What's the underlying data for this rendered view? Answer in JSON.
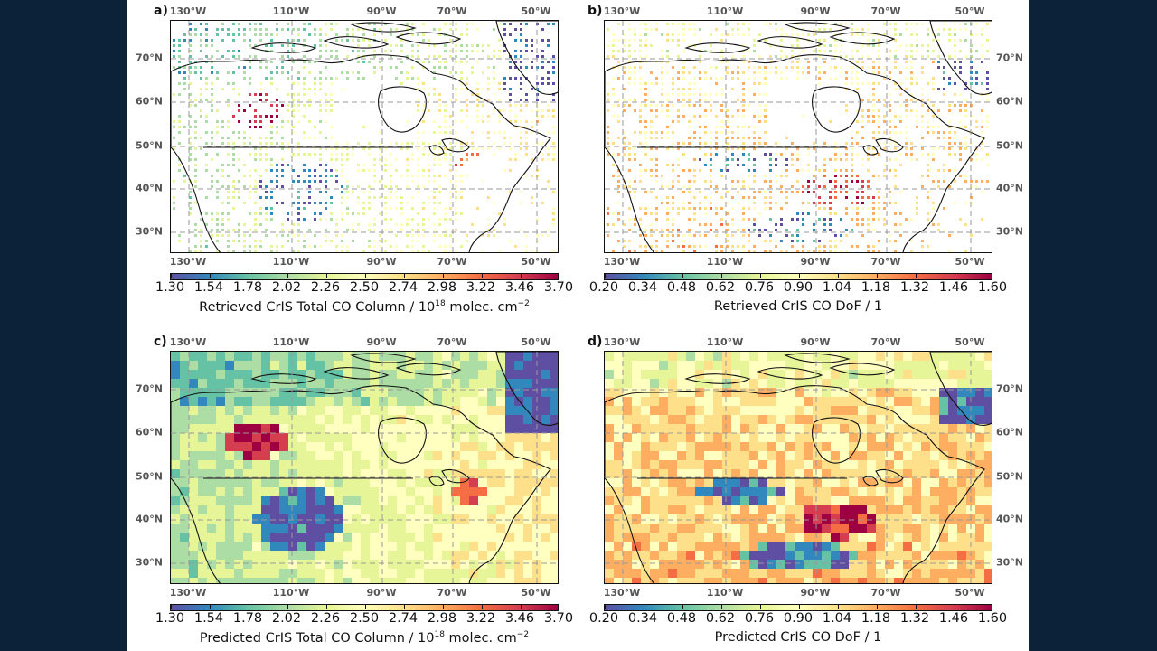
{
  "figure": {
    "panels": [
      {
        "letter": "a)",
        "kind": "retrieved",
        "variable": "total_co",
        "colorbar_ticks": [
          "1.30",
          "1.54",
          "1.78",
          "2.02",
          "2.26",
          "2.50",
          "2.74",
          "2.98",
          "3.22",
          "3.46",
          "3.70"
        ],
        "colorbar_title": "Retrieved CrIS Total CO Column / 10",
        "colorbar_title_sup": "18",
        "colorbar_title_end": " molec. cm",
        "colorbar_title_sup2": "−2"
      },
      {
        "letter": "b)",
        "kind": "retrieved",
        "variable": "dof",
        "colorbar_ticks": [
          "0.20",
          "0.34",
          "0.48",
          "0.62",
          "0.76",
          "0.90",
          "1.04",
          "1.18",
          "1.32",
          "1.46",
          "1.60"
        ],
        "colorbar_title": "Retrieved CrIS CO DoF / 1",
        "colorbar_title_sup": "",
        "colorbar_title_end": "",
        "colorbar_title_sup2": ""
      },
      {
        "letter": "c)",
        "kind": "predicted",
        "variable": "total_co",
        "colorbar_ticks": [
          "1.30",
          "1.54",
          "1.78",
          "2.02",
          "2.26",
          "2.50",
          "2.74",
          "2.98",
          "3.22",
          "3.46",
          "3.70"
        ],
        "colorbar_title": "Predicted CrIS Total CO Column / 10",
        "colorbar_title_sup": "18",
        "colorbar_title_end": " molec. cm",
        "colorbar_title_sup2": "−2"
      },
      {
        "letter": "d)",
        "kind": "predicted",
        "variable": "dof",
        "colorbar_ticks": [
          "0.20",
          "0.34",
          "0.48",
          "0.62",
          "0.76",
          "0.90",
          "1.04",
          "1.18",
          "1.32",
          "1.46",
          "1.60"
        ],
        "colorbar_title": "Predicted CrIS CO DoF / 1",
        "colorbar_title_sup": "",
        "colorbar_title_end": "",
        "colorbar_title_sup2": ""
      }
    ],
    "lon_labels": [
      "130°W",
      "110°W",
      "90°W",
      "70°W",
      "50°W"
    ],
    "lat_labels": [
      "70°N",
      "60°N",
      "50°N",
      "40°N",
      "30°N"
    ],
    "colormap": [
      "#5e4fa2",
      "#3288bd",
      "#66c2a5",
      "#abdda4",
      "#e6f598",
      "#ffffbf",
      "#fee08b",
      "#fdae61",
      "#f46d43",
      "#d53e4f",
      "#9e0142"
    ],
    "background_color": "#0b2238"
  }
}
